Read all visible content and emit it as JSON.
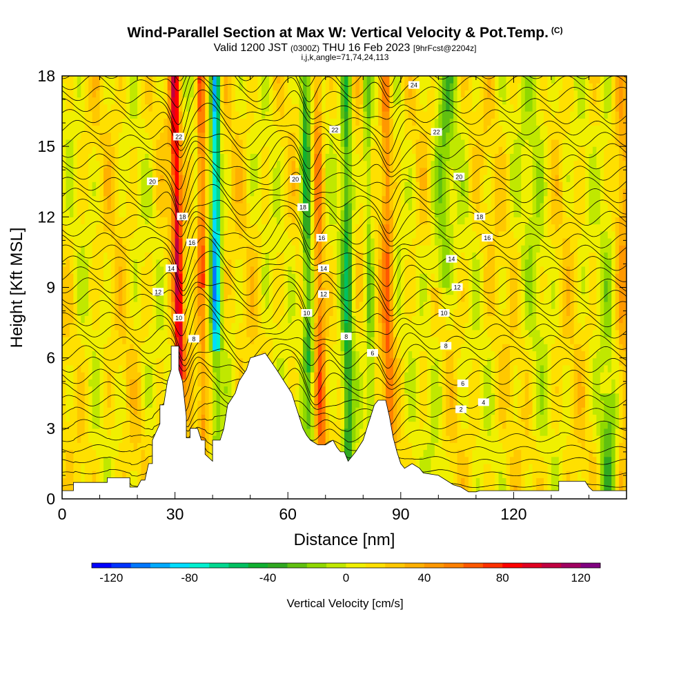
{
  "title": {
    "main": "Wind-Parallel Section at Max W: Vertical Velocity & Pot.Temp.",
    "mark": "(C)",
    "valid_prefix": "Valid 1200 JST",
    "valid_utc": "(0300Z)",
    "valid_date": "THU 16 Feb 2023",
    "forecast": "[9hrFcst@2204z]",
    "indices": "i,j,k,angle=71,74,24,113"
  },
  "chart_data": {
    "type": "heatmap",
    "xlabel": "Distance [nm]",
    "ylabel": "Height [Kft MSL]",
    "xlim": [
      0,
      150
    ],
    "ylim": [
      0,
      18
    ],
    "xticks": [
      0,
      30,
      60,
      90,
      120
    ],
    "yticks": [
      0,
      3,
      6,
      9,
      12,
      15,
      18
    ],
    "colorbar": {
      "label": "Vertical Velocity [cm/s]",
      "range": [
        -130,
        130
      ],
      "step": 10,
      "ticks": [
        -120,
        -80,
        -40,
        0,
        40,
        80,
        120
      ],
      "colors": [
        "#0000ff",
        "#0033ff",
        "#0077ff",
        "#00aaff",
        "#00ddff",
        "#00f0d0",
        "#00d890",
        "#00c060",
        "#10b030",
        "#30a820",
        "#60c010",
        "#90d800",
        "#c0e800",
        "#f0f000",
        "#ffe000",
        "#ffc800",
        "#ffb000",
        "#ff9800",
        "#ff8000",
        "#ff5800",
        "#ff3000",
        "#ff0000",
        "#e00020",
        "#c00040",
        "#a00060",
        "#800080"
      ]
    },
    "terrain_kft": [
      [
        0,
        0.35
      ],
      [
        3,
        0.35
      ],
      [
        3,
        0.7
      ],
      [
        12,
        0.7
      ],
      [
        12,
        0.9
      ],
      [
        18,
        0.9
      ],
      [
        18,
        0.5
      ],
      [
        20,
        0.5
      ],
      [
        21,
        0.8
      ],
      [
        22,
        0.8
      ],
      [
        23,
        1.5
      ],
      [
        24,
        1.5
      ],
      [
        24,
        2.5
      ],
      [
        26,
        3.2
      ],
      [
        26,
        4
      ],
      [
        27,
        4
      ],
      [
        28,
        5
      ],
      [
        29,
        5.5
      ],
      [
        29,
        6.5
      ],
      [
        31,
        6.5
      ],
      [
        31,
        5.5
      ],
      [
        32,
        5
      ],
      [
        33,
        3.5
      ],
      [
        33,
        2.6
      ],
      [
        34,
        2.6
      ],
      [
        34,
        3
      ],
      [
        36,
        3
      ],
      [
        37,
        2.5
      ],
      [
        38,
        2.5
      ],
      [
        38,
        1.9
      ],
      [
        40,
        1.6
      ],
      [
        40,
        2.5
      ],
      [
        42,
        2.5
      ],
      [
        43,
        3
      ],
      [
        44,
        4
      ],
      [
        46,
        4.5
      ],
      [
        47,
        5
      ],
      [
        49,
        5.5
      ],
      [
        50,
        6
      ],
      [
        54,
        6.2
      ],
      [
        57,
        5.5
      ],
      [
        59,
        5
      ],
      [
        61,
        4.5
      ],
      [
        62,
        4
      ],
      [
        63,
        3.5
      ],
      [
        64,
        3
      ],
      [
        65,
        2.7
      ],
      [
        66,
        2.5
      ],
      [
        68,
        2.3
      ],
      [
        70,
        2.3
      ],
      [
        72,
        2.5
      ],
      [
        73,
        2.2
      ],
      [
        74,
        2
      ],
      [
        75,
        2
      ],
      [
        76,
        1.6
      ],
      [
        78,
        2
      ],
      [
        80,
        2.5
      ],
      [
        81,
        3
      ],
      [
        82,
        3.5
      ],
      [
        83,
        4
      ],
      [
        84,
        4.2
      ],
      [
        86,
        4.2
      ],
      [
        87,
        3.5
      ],
      [
        88,
        2.6
      ],
      [
        89,
        2
      ],
      [
        90,
        1.5
      ],
      [
        91,
        1.3
      ],
      [
        93,
        1.5
      ],
      [
        95,
        1.3
      ],
      [
        96,
        1.1
      ],
      [
        100,
        1
      ],
      [
        104,
        0.6
      ],
      [
        106,
        0.5
      ],
      [
        108,
        0.3
      ],
      [
        110,
        0.3
      ],
      [
        111,
        0.35
      ],
      [
        132,
        0.35
      ],
      [
        132,
        0.75
      ],
      [
        139,
        0.75
      ],
      [
        140,
        0.5
      ],
      [
        141,
        0.35
      ],
      [
        150,
        0.35
      ]
    ],
    "potential_temperature_contour_labels": [
      {
        "value": "24",
        "x": 93.5,
        "y": 17.6
      },
      {
        "value": "22",
        "x": 31,
        "y": 15.4
      },
      {
        "value": "22",
        "x": 72.5,
        "y": 15.7
      },
      {
        "value": "22",
        "x": 99.5,
        "y": 15.6
      },
      {
        "value": "20",
        "x": 24,
        "y": 13.5
      },
      {
        "value": "20",
        "x": 62,
        "y": 13.6
      },
      {
        "value": "20",
        "x": 105.5,
        "y": 13.7
      },
      {
        "value": "18",
        "x": 32,
        "y": 12
      },
      {
        "value": "18",
        "x": 64,
        "y": 12.4
      },
      {
        "value": "18",
        "x": 111,
        "y": 12.0
      },
      {
        "value": "16",
        "x": 34.5,
        "y": 10.9
      },
      {
        "value": "16",
        "x": 69,
        "y": 11.1
      },
      {
        "value": "16",
        "x": 113,
        "y": 11.1
      },
      {
        "value": "14",
        "x": 29,
        "y": 9.8
      },
      {
        "value": "14",
        "x": 69.5,
        "y": 9.8
      },
      {
        "value": "14",
        "x": 103.5,
        "y": 10.2
      },
      {
        "value": "12",
        "x": 25.5,
        "y": 8.8
      },
      {
        "value": "12",
        "x": 69.5,
        "y": 8.7
      },
      {
        "value": "12",
        "x": 105,
        "y": 9.0
      },
      {
        "value": "10",
        "x": 31,
        "y": 7.7
      },
      {
        "value": "10",
        "x": 65,
        "y": 7.9
      },
      {
        "value": "10",
        "x": 101.5,
        "y": 7.9
      },
      {
        "value": "8",
        "x": 35,
        "y": 6.8
      },
      {
        "value": "8",
        "x": 75.5,
        "y": 6.9
      },
      {
        "value": "8",
        "x": 102,
        "y": 6.5
      },
      {
        "value": "6",
        "x": 82.5,
        "y": 6.2
      },
      {
        "value": "6",
        "x": 106.5,
        "y": 4.9
      },
      {
        "value": "4",
        "x": 112,
        "y": 4.1
      },
      {
        "value": "2",
        "x": 106,
        "y": 3.8
      }
    ]
  }
}
